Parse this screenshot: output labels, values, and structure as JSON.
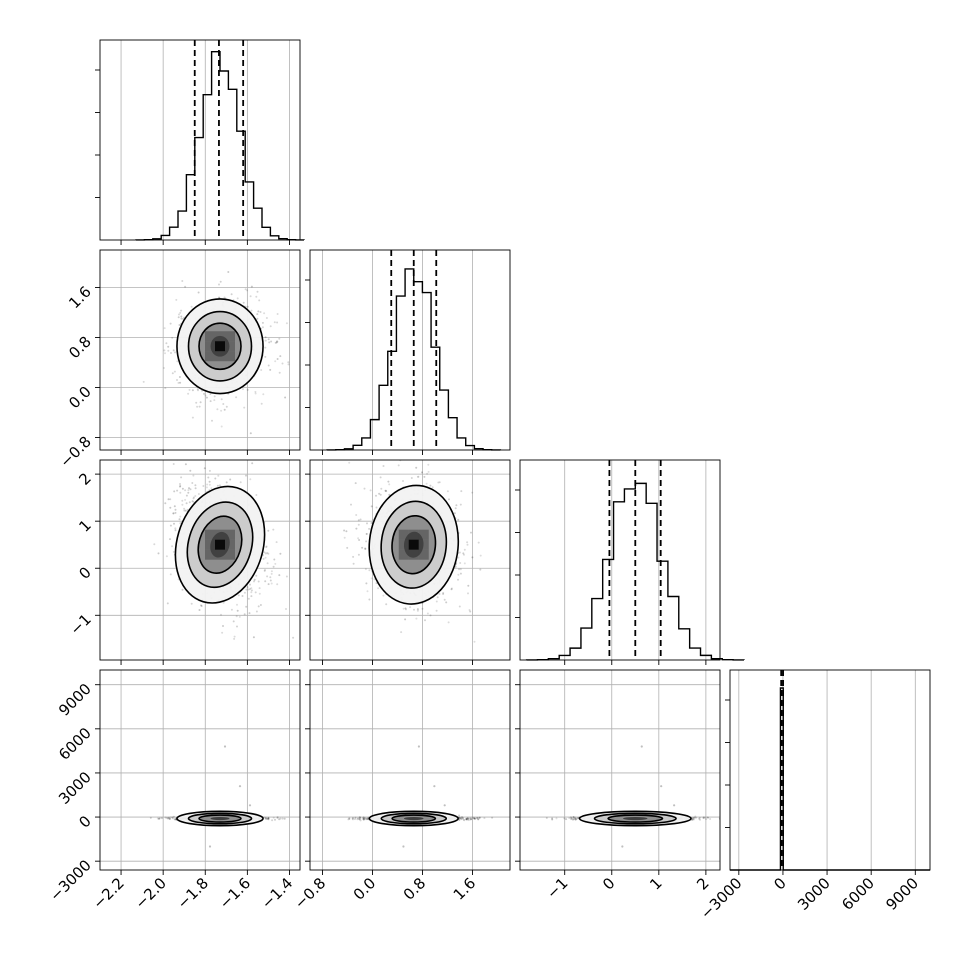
{
  "chart_data": {
    "type": "corner",
    "grid_lines": true,
    "parameters": [
      {
        "range": [
          -2.3,
          -1.35
        ],
        "ticks": [
          -2.2,
          -2.0,
          -1.8,
          -1.6,
          -1.4
        ],
        "tick_labels": [
          "−2.2",
          "−2.0",
          "−1.8",
          "−1.6",
          "−1.4"
        ],
        "mean": -1.73,
        "sd": 0.095,
        "quantiles": [
          -1.85,
          -1.735,
          -1.62
        ],
        "hist_peak": [
          0.96,
          1.0
        ]
      },
      {
        "range": [
          -1.0,
          2.2
        ],
        "ticks": [
          -0.8,
          0.0,
          0.8,
          1.6
        ],
        "tick_labels": [
          "−0.8",
          "0.0",
          "0.8",
          "1.6"
        ],
        "mean": 0.66,
        "sd": 0.33,
        "quantiles": [
          0.3,
          0.66,
          1.02
        ],
        "hist_peak": [
          0.93,
          1.0
        ]
      },
      {
        "range": [
          -1.95,
          2.3
        ],
        "ticks": [
          -1,
          0,
          1,
          2
        ],
        "tick_labels": [
          "−1",
          "0",
          "1",
          "2"
        ],
        "mean": 0.5,
        "sd": 0.55,
        "quantiles": [
          -0.05,
          0.5,
          1.04
        ],
        "hist_peak": [
          0.97,
          1.0
        ]
      },
      {
        "range": [
          -3600,
          10000
        ],
        "ticks": [
          -3000,
          0,
          3000,
          6000,
          9000
        ],
        "tick_labels": [
          "−3000",
          "0",
          "3000",
          "6000",
          "9000"
        ],
        "mean": -100,
        "sd": 40,
        "quantiles": [
          -120,
          -100,
          10
        ],
        "hist_peak": [
          1.0,
          1.0
        ]
      }
    ],
    "pairs": [
      {
        "row": 1,
        "col": 0,
        "correlation": 0.0
      },
      {
        "row": 2,
        "col": 0,
        "correlation": -0.3
      },
      {
        "row": 2,
        "col": 1,
        "correlation": -0.1
      },
      {
        "row": 3,
        "col": 0,
        "correlation": 0.0
      },
      {
        "row": 3,
        "col": 1,
        "correlation": 0.0
      },
      {
        "row": 3,
        "col": 2,
        "correlation": 0.0
      }
    ]
  }
}
